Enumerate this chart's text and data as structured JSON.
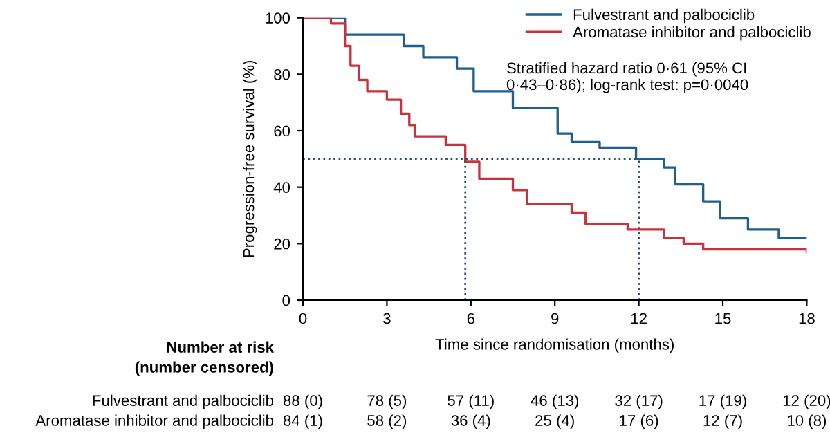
{
  "chart_data": {
    "type": "step",
    "xlabel": "Time since randomisation (months)",
    "ylabel": "Progression-free survival (%)",
    "series": [
      {
        "name": "Fulvestrant and palbociclib",
        "color": "#1f5f8b",
        "x": [
          0,
          1.5,
          3.6,
          4.3,
          5.5,
          6.1,
          7.5,
          9.1,
          9.6,
          10.6,
          11.9,
          12.9,
          13.3,
          14.3,
          14.9,
          15.9,
          17.0,
          18
        ],
        "values": [
          100,
          94,
          90,
          86,
          82,
          74,
          68,
          59,
          56,
          54,
          50,
          47,
          41,
          35,
          29,
          25,
          22,
          22
        ]
      },
      {
        "name": "Aromatase inhibitor and palbociclib",
        "color": "#c8323c",
        "x": [
          0,
          1.0,
          1.5,
          1.7,
          2.0,
          2.3,
          3.0,
          3.5,
          3.8,
          4.0,
          5.1,
          5.8,
          6.3,
          7.5,
          8.0,
          9.6,
          10.1,
          11.6,
          12.9,
          13.6,
          14.3,
          18
        ],
        "values": [
          100,
          98,
          90,
          83,
          78,
          74,
          71,
          66,
          62,
          58,
          55,
          49,
          43,
          39,
          34,
          31,
          27,
          25,
          22,
          20,
          18,
          17
        ]
      }
    ],
    "xlim": [
      0,
      18
    ],
    "ylim": [
      0,
      100
    ],
    "xticks": [
      0,
      3,
      6,
      9,
      12,
      15,
      18
    ],
    "yticks": [
      0,
      20,
      40,
      60,
      80,
      100
    ],
    "ref_lines": [
      {
        "axis": "y",
        "value": 50,
        "line_style": "dotted"
      },
      {
        "axis": "x",
        "value": 5.8,
        "line_style": "dotted"
      },
      {
        "axis": "x",
        "value": 12,
        "line_style": "dotted"
      }
    ],
    "legend": "top right",
    "grid": false,
    "annotations": [
      "Stratified hazard ratio 0·61 (95% CI 0·43–0·86); log-rank test: p=0·0040",
      "Number at risk",
      "(number censored)",
      "Fulvestrant and palbociclib",
      "88 (0)",
      "78 (5)",
      "57 (11)",
      "46 (13)",
      "32 (17)",
      "17 (19)",
      "12 (20)",
      "Aromatase inhibitor and palbociclib",
      "84 (1)",
      "58 (2)",
      "36 (4)",
      "25 (4)",
      "17 (6)",
      "12 (7)",
      "10 (8)"
    ]
  }
}
